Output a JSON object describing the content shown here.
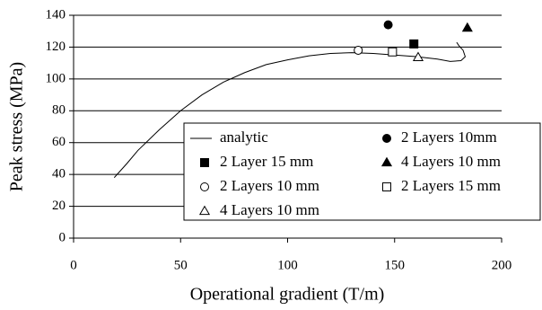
{
  "chart_data": {
    "type": "scatter",
    "x_label": "Operational gradient (T/m)",
    "y_label": "Peak stress (MPa)",
    "xlim": [
      0,
      200
    ],
    "xticks": [
      0,
      50,
      100,
      150,
      200
    ],
    "ylim": [
      0,
      140
    ],
    "yticks": [
      0,
      20,
      40,
      60,
      80,
      100,
      120,
      140
    ],
    "grid": true,
    "series": [
      {
        "name": "analytic",
        "style": "line",
        "color": "#000000",
        "x": [
          19,
          25,
          30,
          40,
          50,
          60,
          70,
          80,
          90,
          100,
          110,
          120,
          130,
          140,
          150,
          160,
          170,
          176,
          181,
          183,
          182,
          180,
          179
        ],
        "values": [
          38,
          47,
          55,
          68,
          80,
          90,
          98,
          104,
          109,
          112,
          114.5,
          116,
          116.5,
          116,
          115,
          114,
          112.5,
          111,
          111.5,
          114,
          118,
          121,
          123
        ]
      },
      {
        "name": "2 Layers 10mm",
        "style": "marker",
        "marker": "circle",
        "filled": true,
        "color": "#000000",
        "x": [
          147
        ],
        "values": [
          134
        ]
      },
      {
        "name": "2 Layer 15 mm",
        "style": "marker",
        "marker": "square",
        "filled": true,
        "color": "#000000",
        "x": [
          159
        ],
        "values": [
          122
        ]
      },
      {
        "name": "4 Layers 10 mm",
        "style": "marker",
        "marker": "triangle",
        "filled": true,
        "color": "#000000",
        "x": [
          184
        ],
        "values": [
          132
        ]
      },
      {
        "name": "2 Layers 10 mm",
        "style": "marker",
        "marker": "circle",
        "filled": false,
        "color": "#000000",
        "x": [
          133
        ],
        "values": [
          118
        ]
      },
      {
        "name": "2 Layers 15 mm",
        "style": "marker",
        "marker": "square",
        "filled": false,
        "color": "#000000",
        "x": [
          149
        ],
        "values": [
          117
        ]
      },
      {
        "name": "4 Layers 10 mm",
        "style": "marker",
        "marker": "triangle",
        "filled": false,
        "color": "#000000",
        "x": [
          161
        ],
        "values": [
          113.5
        ]
      }
    ]
  }
}
